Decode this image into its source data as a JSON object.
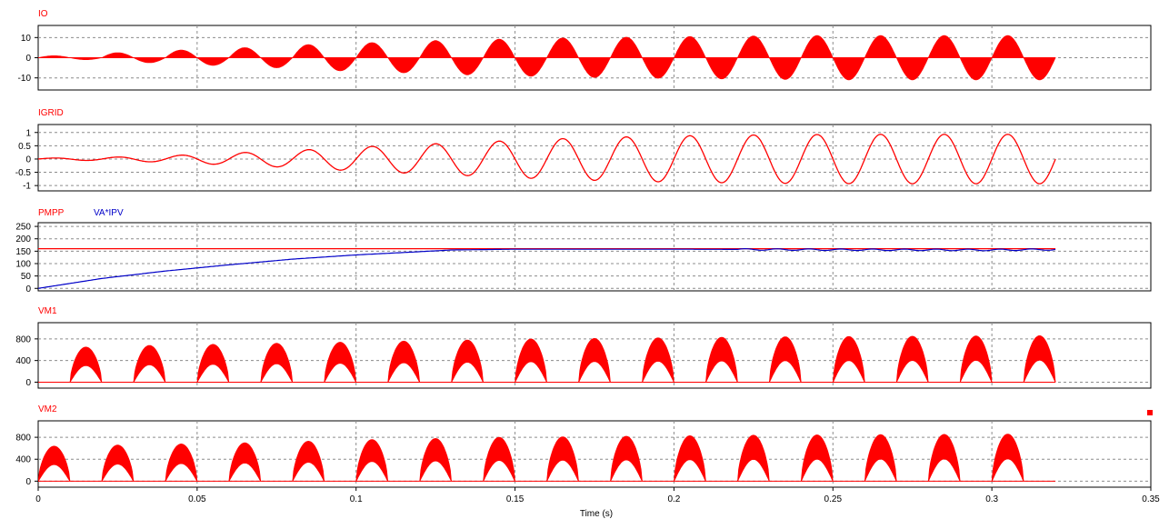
{
  "x_axis": {
    "label": "Time (s)",
    "ticks": [
      "0",
      "0.05",
      "0.1",
      "0.15",
      "0.2",
      "0.25",
      "0.3",
      "0.35"
    ],
    "range": [
      0,
      0.35
    ]
  },
  "colors": {
    "red": "#ff0000",
    "blue": "#0000c8",
    "grid": "#8c8c8c",
    "frame": "#000000"
  },
  "chart_data": [
    {
      "type": "area",
      "title": "IO",
      "series": [
        {
          "name": "IO",
          "color": "#ff0000"
        }
      ],
      "y_ticks": [
        "10",
        "0",
        "-10"
      ],
      "ylim": [
        -16,
        16
      ],
      "x": [
        0,
        0.32
      ],
      "envelope": "filled sinusoid (high-frequency switching), 50 Hz, peak rising from ~1 to ~11",
      "cycle_peaks": [
        1,
        2.5,
        3.8,
        5,
        6.5,
        7.5,
        8.5,
        9.2,
        9.8,
        10.2,
        10.5,
        10.8,
        11,
        11,
        11,
        11
      ]
    },
    {
      "type": "line",
      "title": "IGRID",
      "series": [
        {
          "name": "IGRID",
          "color": "#ff0000"
        }
      ],
      "y_ticks": [
        "1",
        "0.5",
        "0",
        "-0.5",
        "-1"
      ],
      "ylim": [
        -1.2,
        1.3
      ],
      "x": [
        0,
        0.32
      ],
      "cycle_peaks": [
        0.03,
        0.06,
        0.12,
        0.22,
        0.32,
        0.45,
        0.55,
        0.65,
        0.75,
        0.82,
        0.87,
        0.9,
        0.92,
        0.93,
        0.93,
        0.93
      ]
    },
    {
      "type": "line",
      "title": "PMPP VA*IPV",
      "series": [
        {
          "name": "PMPP",
          "color": "#ff0000",
          "x": [
            0,
            0.32
          ],
          "y": [
            160,
            160
          ]
        },
        {
          "name": "VA*IPV",
          "color": "#0000c8",
          "x": [
            0,
            0.02,
            0.04,
            0.06,
            0.08,
            0.1,
            0.12,
            0.13,
            0.15,
            0.2,
            0.25,
            0.3,
            0.32
          ],
          "y": [
            0,
            40,
            70,
            95,
            118,
            135,
            148,
            155,
            158,
            158,
            156,
            155,
            157
          ]
        }
      ],
      "y_ticks": [
        "250",
        "200",
        "150",
        "100",
        "50",
        "0"
      ],
      "ylim": [
        -10,
        265
      ]
    },
    {
      "type": "area",
      "title": "VM1",
      "series": [
        {
          "name": "VM1",
          "color": "#ff0000"
        }
      ],
      "y_ticks": [
        "800",
        "400",
        "0"
      ],
      "ylim": [
        -110,
        1100
      ],
      "x": [
        0,
        0.32
      ],
      "envelope": "rectified half-sine pulses (positive half-cycles, centered at 0.015 + 0.02k s), filled band",
      "pulse_centers": [
        0.015,
        0.035,
        0.055,
        0.075,
        0.095,
        0.115,
        0.135,
        0.155,
        0.175,
        0.195,
        0.215,
        0.235,
        0.255,
        0.275,
        0.295,
        0.315
      ],
      "pulse_peaks": [
        650,
        680,
        700,
        720,
        740,
        760,
        780,
        800,
        810,
        820,
        830,
        840,
        845,
        850,
        855,
        860
      ]
    },
    {
      "type": "area",
      "title": "VM2",
      "series": [
        {
          "name": "VM2",
          "color": "#ff0000"
        }
      ],
      "y_ticks": [
        "800",
        "400",
        "0"
      ],
      "ylim": [
        -110,
        1100
      ],
      "x": [
        0,
        0.32
      ],
      "envelope": "rectified half-sine pulses (positive half-cycles, centered at 0.005 + 0.02k s), filled band",
      "pulse_centers": [
        0.005,
        0.025,
        0.045,
        0.065,
        0.085,
        0.105,
        0.125,
        0.145,
        0.165,
        0.185,
        0.205,
        0.225,
        0.245,
        0.265,
        0.285,
        0.305
      ],
      "pulse_peaks": [
        640,
        660,
        680,
        700,
        730,
        760,
        780,
        800,
        810,
        820,
        830,
        840,
        845,
        850,
        855,
        860
      ]
    }
  ]
}
